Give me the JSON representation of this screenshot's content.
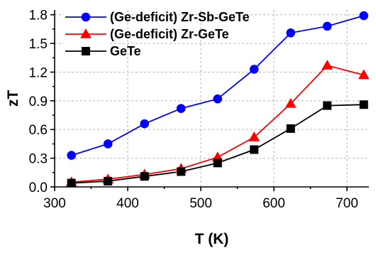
{
  "chart_data": {
    "type": "line",
    "title": "",
    "xlabel": "T (K)",
    "ylabel": "zT",
    "xlim": [
      300,
      730
    ],
    "ylim": [
      0,
      1.85
    ],
    "xticks": [
      300,
      400,
      500,
      600,
      700
    ],
    "yticks": [
      0.0,
      0.3,
      0.6,
      0.9,
      1.2,
      1.5,
      1.8
    ],
    "xtick_labels": [
      "300",
      "400",
      "500",
      "600",
      "700"
    ],
    "ytick_labels": [
      "0.0",
      "0.3",
      "0.6",
      "0.9",
      "1.2",
      "1.5",
      "1.8"
    ],
    "grid": true,
    "legend_position": "top-left",
    "series": [
      {
        "name": "(Ge-deficit) Zr-Sb-GeTe",
        "color": "#0000ff",
        "marker": "circle",
        "x": [
          323,
          373,
          423,
          473,
          523,
          573,
          623,
          673,
          723
        ],
        "y": [
          0.33,
          0.45,
          0.66,
          0.82,
          0.92,
          1.23,
          1.61,
          1.68,
          1.79
        ]
      },
      {
        "name": "(Ge-deficit) Zr-GeTe",
        "color": "#ff0000",
        "marker": "triangle",
        "x": [
          323,
          373,
          423,
          473,
          523,
          573,
          623,
          673,
          723
        ],
        "y": [
          0.05,
          0.08,
          0.13,
          0.19,
          0.31,
          0.52,
          0.87,
          1.27,
          1.17
        ]
      },
      {
        "name": "GeTe",
        "color": "#000000",
        "marker": "square",
        "x": [
          323,
          373,
          423,
          473,
          523,
          573,
          623,
          673,
          723
        ],
        "y": [
          0.04,
          0.06,
          0.11,
          0.16,
          0.25,
          0.39,
          0.61,
          0.85,
          0.86
        ]
      }
    ]
  }
}
